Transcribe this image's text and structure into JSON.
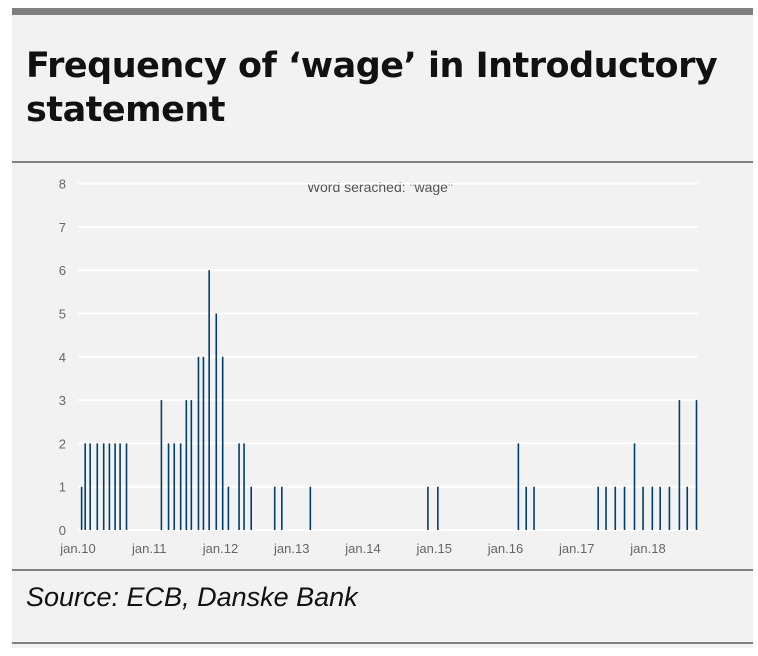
{
  "title": "Frequency of ‘wage’ in Introductory statement",
  "source": "Source: ECB, Danske Bank",
  "chart_data": {
    "type": "bar",
    "title": "Frequency of ‘wage’ in Introductory statement",
    "subtitle": "Word serached: \"wage\"",
    "xlabel": "",
    "ylabel": "",
    "xlim": [
      2009.95,
      2018.75
    ],
    "ylim": [
      0,
      8
    ],
    "yticks": [
      0,
      1,
      2,
      3,
      4,
      5,
      6,
      7,
      8
    ],
    "xticks": [
      {
        "value": 2010,
        "label": "jan.10"
      },
      {
        "value": 2011,
        "label": "jan.11"
      },
      {
        "value": 2012,
        "label": "jan.12"
      },
      {
        "value": 2013,
        "label": "jan.13"
      },
      {
        "value": 2014,
        "label": "jan.14"
      },
      {
        "value": 2015,
        "label": "jan.15"
      },
      {
        "value": 2016,
        "label": "jan.16"
      },
      {
        "value": 2017,
        "label": "jan.17"
      },
      {
        "value": 2018,
        "label": "jan.18"
      }
    ],
    "grid": true,
    "color": "#003f6b",
    "x": [
      2010.05,
      2010.1,
      2010.17,
      2010.27,
      2010.36,
      2010.44,
      2010.52,
      2010.59,
      2010.68,
      2011.17,
      2011.27,
      2011.35,
      2011.44,
      2011.52,
      2011.59,
      2011.69,
      2011.76,
      2011.84,
      2011.94,
      2012.03,
      2012.11,
      2012.26,
      2012.33,
      2012.43,
      2012.76,
      2012.86,
      2013.26,
      2014.91,
      2015.05,
      2016.18,
      2016.29,
      2016.4,
      2017.3,
      2017.41,
      2017.54,
      2017.67,
      2017.81,
      2017.93,
      2018.06,
      2018.17,
      2018.3,
      2018.44,
      2018.55,
      2018.68
    ],
    "values": [
      1,
      2,
      2,
      2,
      2,
      2,
      2,
      2,
      2,
      3,
      2,
      2,
      2,
      3,
      3,
      4,
      4,
      6,
      5,
      4,
      1,
      2,
      2,
      1,
      1,
      1,
      1,
      1,
      1,
      2,
      1,
      1,
      1,
      1,
      1,
      1,
      2,
      1,
      1,
      1,
      1,
      3,
      1,
      3
    ]
  }
}
